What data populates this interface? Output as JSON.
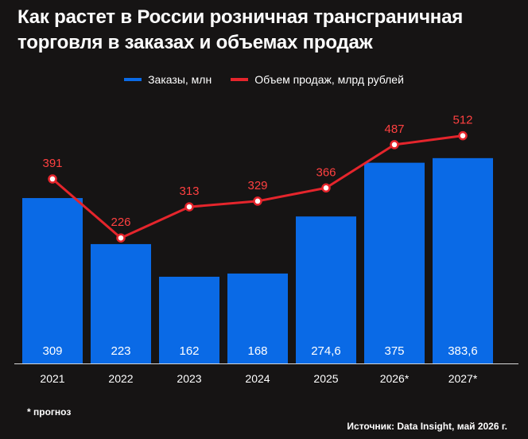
{
  "title_line1": "Как растет в России розничная трансграничная",
  "title_line2": "торговля в заказах и объемах продаж",
  "legend": {
    "orders": "Заказы, млн",
    "sales": "Объем продаж, млрд рублей"
  },
  "colors": {
    "bar": "#0a6ae6",
    "line": "#e5252c",
    "line_label": "#ff4040",
    "background": "#161414"
  },
  "chart_data": {
    "type": "bar",
    "categories": [
      "2021",
      "2022",
      "2023",
      "2024",
      "2025",
      "2026*",
      "2027*"
    ],
    "series": [
      {
        "name": "Заказы, млн",
        "type": "bar",
        "values": [
          309,
          223,
          162,
          168,
          274.6,
          375,
          383.6
        ],
        "labels": [
          "309",
          "223",
          "162",
          "168",
          "274,6",
          "375",
          "383,6"
        ]
      },
      {
        "name": "Объем продаж, млрд рублей",
        "type": "line",
        "values": [
          391,
          226,
          313,
          329,
          366,
          487,
          512
        ],
        "labels": [
          "391",
          "226",
          "313",
          "329",
          "366",
          "487",
          "512"
        ]
      }
    ],
    "legend_position": "top"
  },
  "footnote": "* прогноз",
  "source": "Источник: Data Insight, май 2026 г."
}
